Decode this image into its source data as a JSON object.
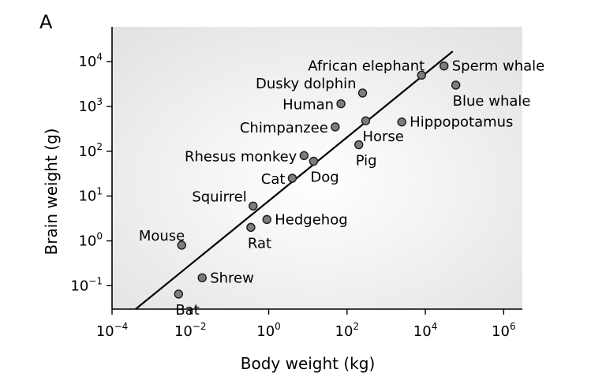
{
  "panel_label": "A",
  "chart_data": {
    "type": "scatter",
    "title": "",
    "xlabel": "Body weight (kg)",
    "ylabel": "Brain weight (g)",
    "x_scale": "log",
    "y_scale": "log",
    "xlim": [
      0.0001,
      3000000
    ],
    "ylim": [
      0.03,
      60000
    ],
    "grid": false,
    "x_ticks": [
      {
        "base": "10",
        "exp": "−4",
        "value": 0.0001
      },
      {
        "base": "10",
        "exp": "−2",
        "value": 0.01
      },
      {
        "base": "10",
        "exp": "0",
        "value": 1
      },
      {
        "base": "10",
        "exp": "2",
        "value": 100
      },
      {
        "base": "10",
        "exp": "4",
        "value": 10000
      },
      {
        "base": "10",
        "exp": "6",
        "value": 1000000
      }
    ],
    "y_ticks": [
      {
        "base": "10",
        "exp": "−1",
        "value": 0.1
      },
      {
        "base": "10",
        "exp": "0",
        "value": 1
      },
      {
        "base": "10",
        "exp": "1",
        "value": 10
      },
      {
        "base": "10",
        "exp": "2",
        "value": 100
      },
      {
        "base": "10",
        "exp": "3",
        "value": 1000
      },
      {
        "base": "10",
        "exp": "4",
        "value": 10000
      }
    ],
    "points": [
      {
        "label": "Sperm whale",
        "x": 30000,
        "y": 8000,
        "label_pos": "right"
      },
      {
        "label": "African elephant",
        "x": 8000,
        "y": 5000,
        "label_pos": "above-left"
      },
      {
        "label": "Blue whale",
        "x": 60000,
        "y": 3000,
        "label_pos": "below-right"
      },
      {
        "label": "Dusky dolphin",
        "x": 250,
        "y": 2000,
        "label_pos": "left-up"
      },
      {
        "label": "Human",
        "x": 70,
        "y": 1150,
        "label_pos": "left"
      },
      {
        "label": "Hippopotamus",
        "x": 2500,
        "y": 450,
        "label_pos": "right"
      },
      {
        "label": "Horse",
        "x": 300,
        "y": 480,
        "label_pos": "below-right"
      },
      {
        "label": "Chimpanzee",
        "x": 50,
        "y": 350,
        "label_pos": "left"
      },
      {
        "label": "Pig",
        "x": 200,
        "y": 140,
        "label_pos": "below-right"
      },
      {
        "label": "Rhesus monkey",
        "x": 8,
        "y": 80,
        "label_pos": "left"
      },
      {
        "label": "Dog",
        "x": 14,
        "y": 60,
        "label_pos": "below-right"
      },
      {
        "label": "Cat",
        "x": 4,
        "y": 25,
        "label_pos": "left"
      },
      {
        "label": "Squirrel",
        "x": 0.4,
        "y": 6,
        "label_pos": "left-up"
      },
      {
        "label": "Hedgehog",
        "x": 0.9,
        "y": 3,
        "label_pos": "right"
      },
      {
        "label": "Rat",
        "x": 0.35,
        "y": 2,
        "label_pos": "below-right"
      },
      {
        "label": "Mouse",
        "x": 0.006,
        "y": 0.8,
        "label_pos": "above-left"
      },
      {
        "label": "Shrew",
        "x": 0.02,
        "y": 0.15,
        "label_pos": "right"
      },
      {
        "label": "Bat",
        "x": 0.005,
        "y": 0.065,
        "label_pos": "below-right"
      }
    ],
    "trend_line": {
      "x": [
        0.0004,
        50000
      ],
      "y": [
        0.03,
        17000
      ]
    },
    "colors": {
      "point_fill": "#7d7d7d",
      "point_stroke": "#1a1a1a",
      "line": "#000000"
    }
  }
}
